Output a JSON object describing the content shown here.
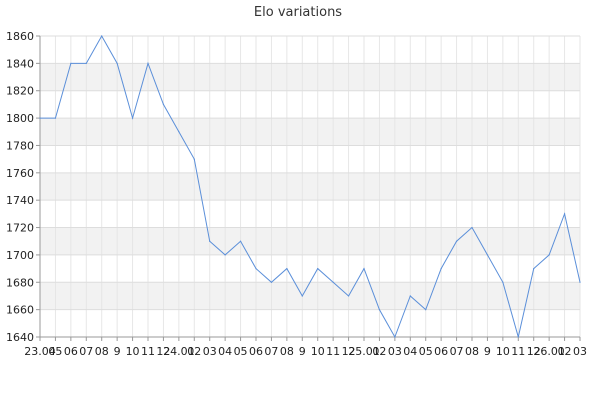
{
  "chart_data": {
    "type": "line",
    "title": "Elo variations",
    "xlabel": "",
    "ylabel": "",
    "ylim": [
      1640,
      1860
    ],
    "ytick_step": 20,
    "grid": true,
    "banded_background": true,
    "colors": {
      "line": "#5b8fd9",
      "band": "#f2f2f2"
    },
    "x_tick_labels": [
      "23.04",
      "05",
      "06",
      "07",
      "08",
      "9",
      "10",
      "11",
      "12",
      "24.01",
      "02",
      "03",
      "04",
      "05",
      "06",
      "07",
      "08",
      "9",
      "10",
      "11",
      "12",
      "25.01",
      "02",
      "03",
      "04",
      "05",
      "06",
      "07",
      "08",
      "9",
      "10",
      "11",
      "12",
      "26.01",
      "02",
      "03"
    ],
    "series": [
      {
        "values": [
          1800,
          1800,
          1840,
          1840,
          1860,
          1840,
          1800,
          1840,
          1810,
          1790,
          1770,
          1710,
          1700,
          1710,
          1690,
          1680,
          1690,
          1670,
          1690,
          1680,
          1670,
          1690,
          1660,
          1640,
          1670,
          1660,
          1690,
          1710,
          1720,
          1700,
          1680,
          1640,
          1690,
          1700,
          1730,
          1680
        ]
      }
    ]
  }
}
